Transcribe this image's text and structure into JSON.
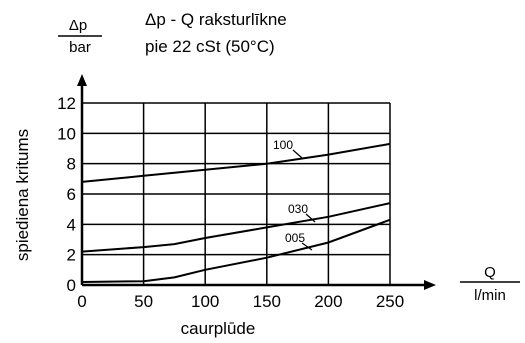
{
  "chart_data": {
    "type": "line",
    "title": "Δp - Q raksturlīkne",
    "subtitle": "pie 22 cSt (50°C)",
    "ylabel": "spiediena kritums",
    "xlabel": "caurplūde",
    "y_unit_fraction": {
      "numerator": "Δp",
      "denominator": "bar"
    },
    "x_unit_fraction": {
      "numerator": "Q",
      "denominator": "l/min"
    },
    "xlim": [
      0,
      250
    ],
    "ylim": [
      0,
      12
    ],
    "x_ticks": [
      0,
      50,
      100,
      150,
      200,
      250
    ],
    "y_ticks": [
      0,
      2,
      4,
      6,
      8,
      10,
      12
    ],
    "grid": true,
    "series": [
      {
        "name": "100",
        "x": [
          0,
          50,
          100,
          150,
          200,
          250
        ],
        "y": [
          6.8,
          7.2,
          7.6,
          8.0,
          8.6,
          9.3
        ]
      },
      {
        "name": "030",
        "x": [
          0,
          50,
          75,
          100,
          150,
          200,
          250
        ],
        "y": [
          2.2,
          2.5,
          2.7,
          3.1,
          3.8,
          4.5,
          5.4
        ]
      },
      {
        "name": "005",
        "x": [
          0,
          50,
          75,
          100,
          150,
          200,
          250
        ],
        "y": [
          0.2,
          0.25,
          0.5,
          1.0,
          1.8,
          2.8,
          4.3
        ]
      }
    ]
  }
}
